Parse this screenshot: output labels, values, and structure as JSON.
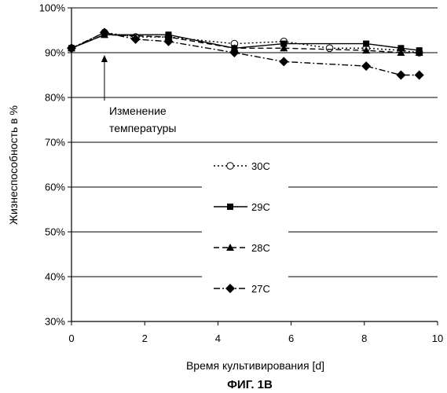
{
  "chart_data": {
    "type": "line",
    "xlabel": "Время культивирования [d]",
    "ylabel": "Жизнеспособность в %",
    "caption": "ФИГ. 1В",
    "xlim": [
      0,
      10
    ],
    "ylim": [
      30,
      100
    ],
    "x_ticks": [
      "0",
      "2",
      "4",
      "6",
      "8",
      "10"
    ],
    "y_ticks": [
      "30%",
      "40%",
      "50%",
      "60%",
      "70%",
      "80%",
      "90%",
      "100%"
    ],
    "grid": "horizontal",
    "legend_position": "center-left",
    "annotation": {
      "lines": [
        "Изменение",
        "температуры"
      ],
      "x": 0.9,
      "y": 90
    },
    "series": [
      {
        "name": "30C",
        "line_style": "dotted",
        "marker": "open-circle",
        "x": [
          0,
          0.9,
          1.75,
          2.65,
          4.45,
          5.8,
          7.05,
          8.05,
          9.0,
          9.5
        ],
        "y": [
          91,
          94.5,
          93.5,
          93.5,
          92,
          92.5,
          91,
          91,
          90.5,
          90
        ]
      },
      {
        "name": "29C",
        "line_style": "solid",
        "marker": "filled-square",
        "x": [
          0,
          0.9,
          2.65,
          4.45,
          5.8,
          8.05,
          9.0,
          9.5
        ],
        "y": [
          91,
          94,
          94,
          91,
          92,
          92,
          91,
          90.5
        ]
      },
      {
        "name": "28C",
        "line_style": "dashed",
        "marker": "filled-triangle",
        "x": [
          0,
          0.9,
          2.65,
          4.45,
          5.8,
          8.05,
          9.0,
          9.5
        ],
        "y": [
          91,
          94,
          93.5,
          91,
          91,
          90.5,
          90,
          90
        ]
      },
      {
        "name": "27C",
        "line_style": "dash-dot",
        "marker": "filled-diamond",
        "x": [
          0,
          0.9,
          1.75,
          2.65,
          4.45,
          5.8,
          8.05,
          9.0,
          9.5
        ],
        "y": [
          91,
          94.5,
          93,
          92.5,
          90,
          88,
          87,
          85,
          85
        ]
      }
    ]
  }
}
